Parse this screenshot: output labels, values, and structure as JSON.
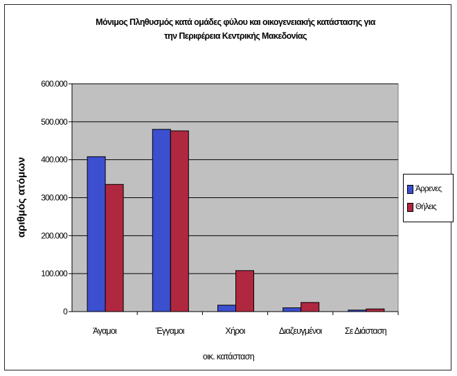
{
  "chart_data": {
    "type": "bar",
    "title_line1": "Μόνιμος Πληθυσμός κατά ομάδες φύλου και οικογενειακής κατάστασης για",
    "title_line2": "την Περιφέρεια Κεντρικής Μακεδονίας",
    "xlabel": "οικ. κατάσταση",
    "ylabel": "αριθμός ατόμων",
    "categories": [
      "Άγαμοι",
      "Έγγαμοι",
      "Χήροι",
      "Διαζευγμένοι",
      "Σε Διάσταση"
    ],
    "series": [
      {
        "name": "Άρρενες",
        "color": "#3b4fcf",
        "values": [
          408000,
          480000,
          17000,
          10000,
          4000
        ]
      },
      {
        "name": "Θήλεις",
        "color": "#b0283f",
        "values": [
          335000,
          476000,
          108000,
          24000,
          7000
        ]
      }
    ],
    "ylim": [
      0,
      600000
    ],
    "yticks": [
      "0",
      "100.000",
      "200.000",
      "300.000",
      "400.000",
      "500.000",
      "600.000"
    ],
    "grid": true,
    "legend_position": "right",
    "plot_background": "#c0c0c0"
  }
}
